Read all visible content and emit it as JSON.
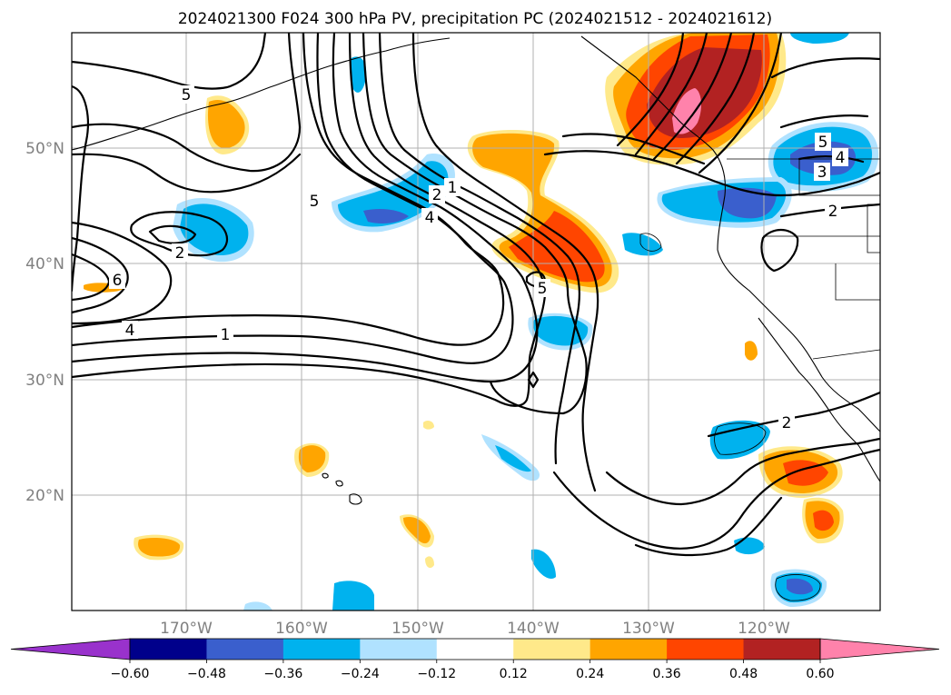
{
  "title": "2024021300 F024 300 hPa PV, precipitation PC (2024021512 - 2024021612)",
  "lat_labels": [
    "50°N",
    "40°N",
    "30°N",
    "20°N"
  ],
  "lon_labels": [
    "170°W",
    "160°W",
    "150°W",
    "140°W",
    "130°W",
    "120°W"
  ],
  "contour_labels": [
    "5",
    "6",
    "4",
    "2",
    "1",
    "5",
    "2",
    "1",
    "4",
    "5",
    "5",
    "4",
    "3",
    "2",
    "2"
  ],
  "colorbar": {
    "tick_labels": [
      "−0.60",
      "−0.48",
      "−0.36",
      "−0.24",
      "−0.12",
      "0.12",
      "0.24",
      "0.36",
      "0.48",
      "0.60"
    ],
    "colors": [
      "#9932CC",
      "#00008B",
      "#3A5FCD",
      "#00B2EE",
      "#B0E2FF",
      "#FFFFFF",
      "#FFE98A",
      "#FFA500",
      "#FF4500",
      "#B22222",
      "#FF82AB"
    ]
  },
  "colors": {
    "purple": "#9932CC",
    "navy": "#00008B",
    "royal_blue": "#3A5FCD",
    "deep_sky": "#00B2EE",
    "light_blue": "#B0E2FF",
    "light_yellow": "#FFE98A",
    "orange": "#FFA500",
    "red_orange": "#FF4500",
    "firebrick": "#B22222",
    "pink": "#FF82AB"
  }
}
